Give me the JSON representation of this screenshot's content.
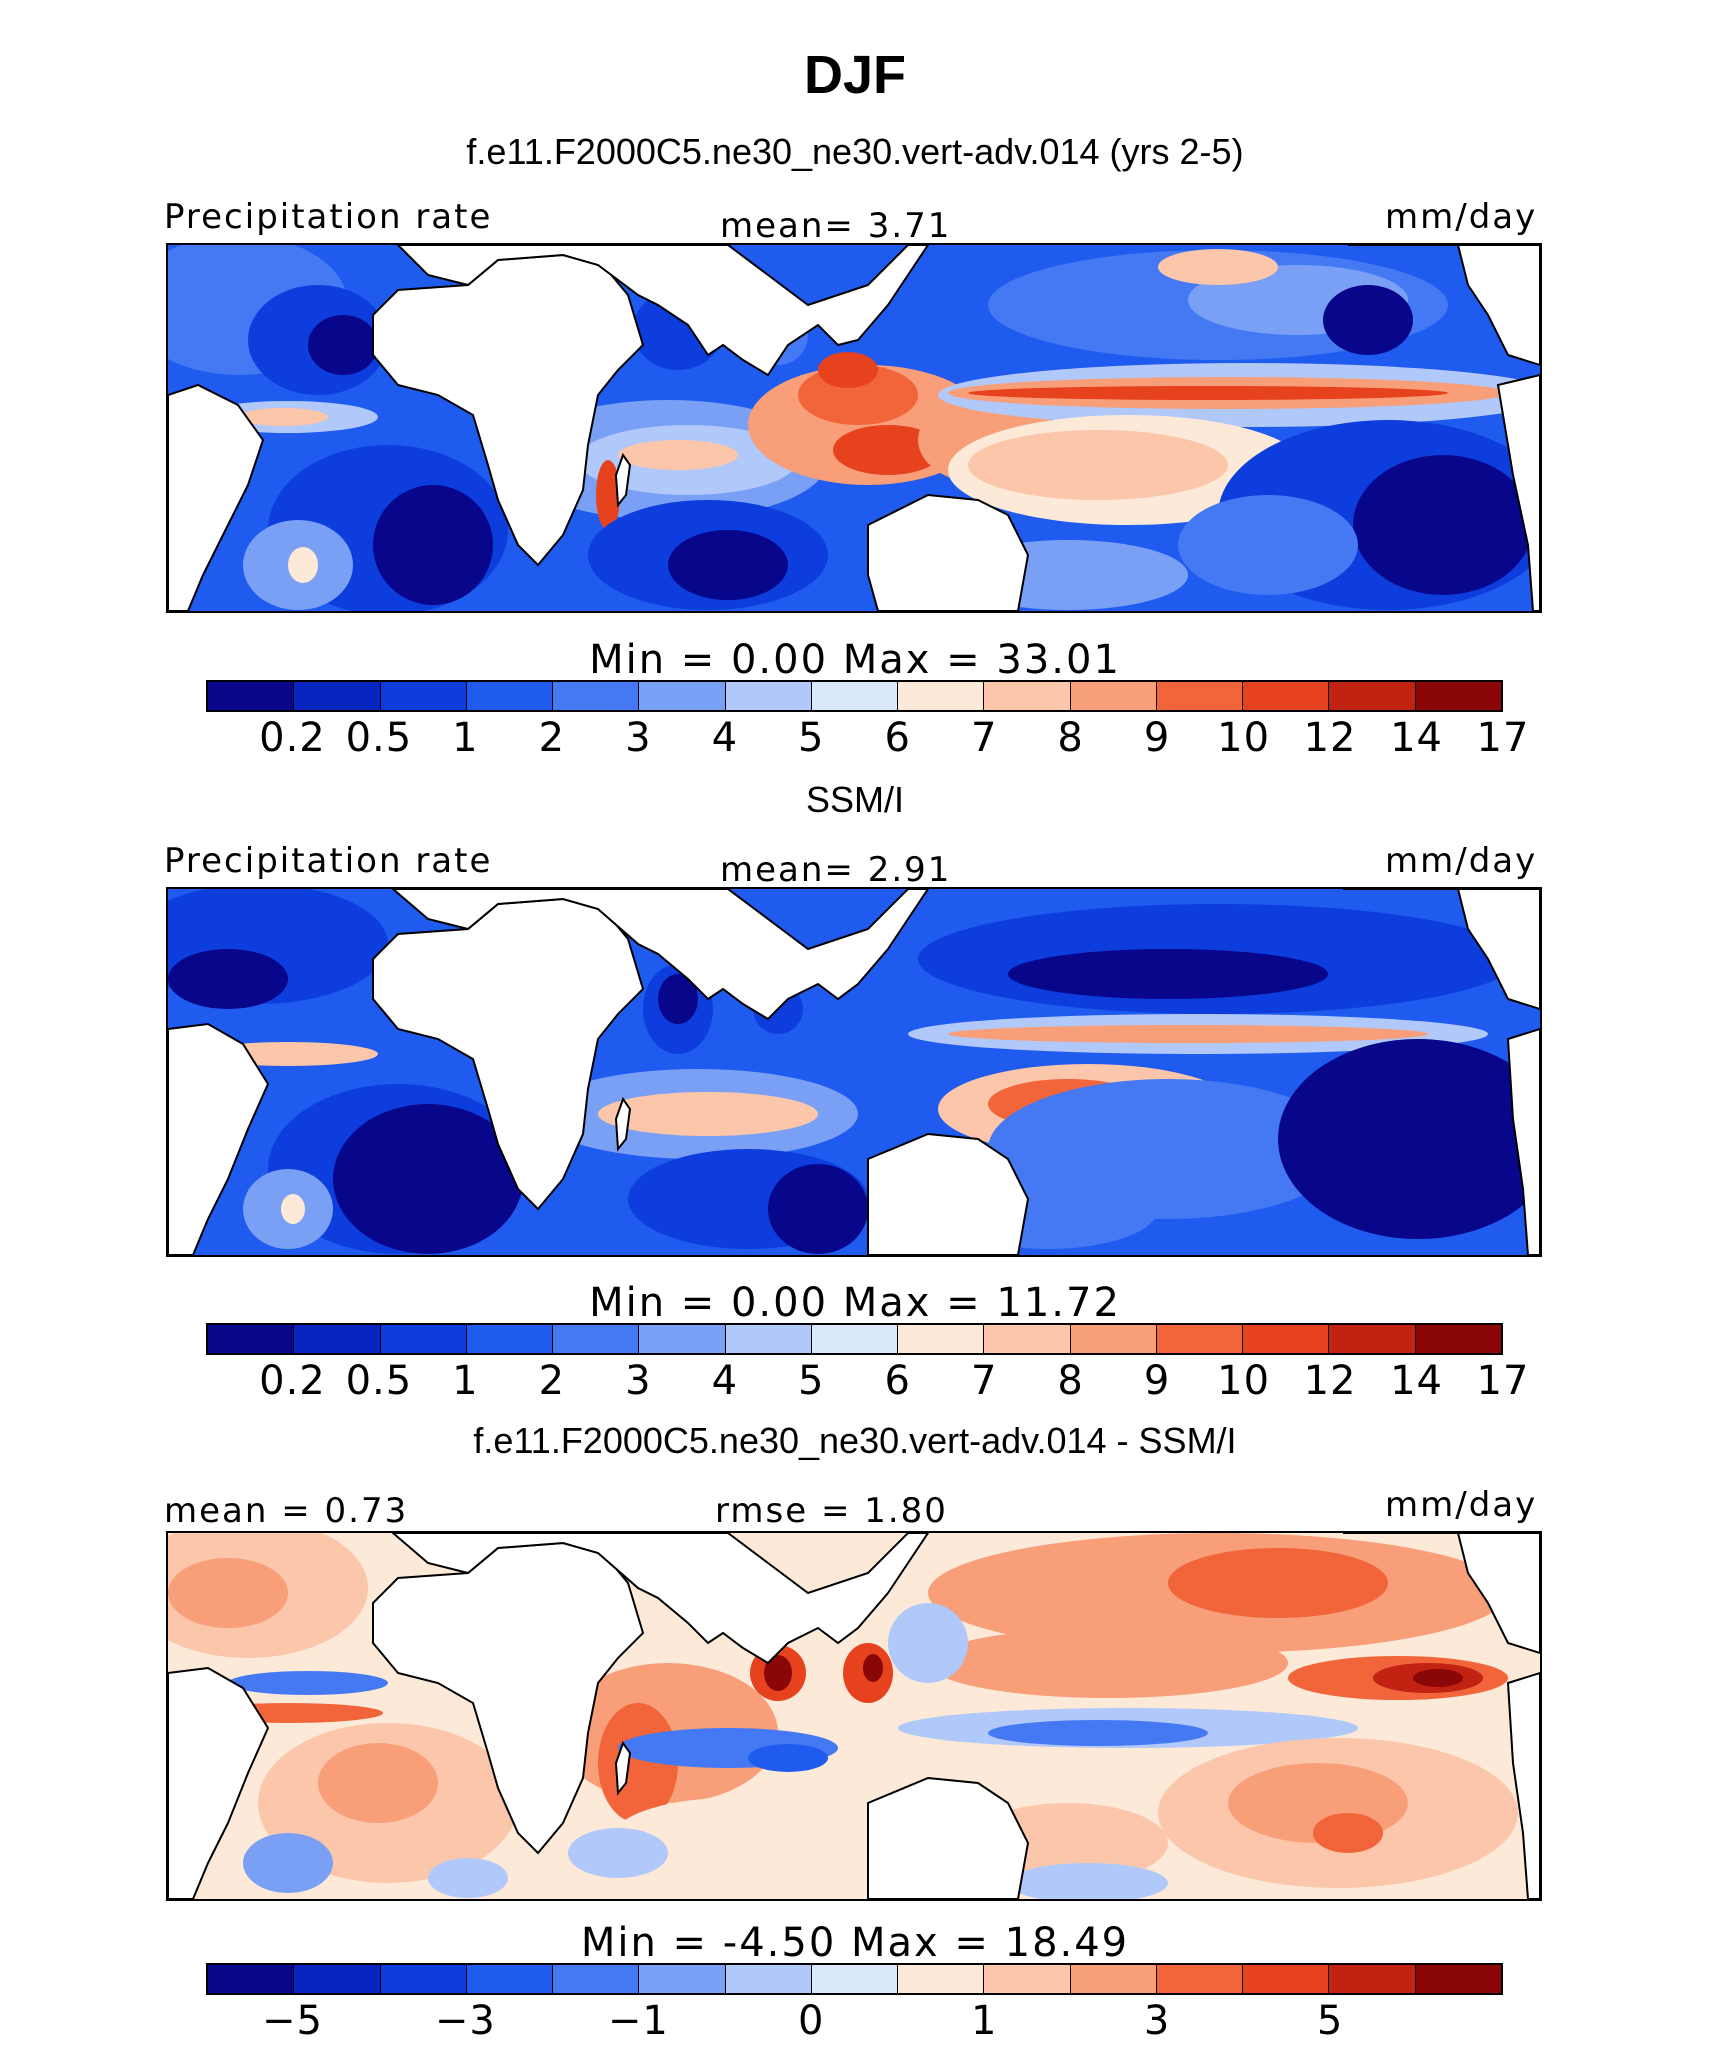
{
  "title": "DJF",
  "panels": [
    {
      "subtitle": "f.e11.F2000C5.ne30_ne30.vert-adv.014 (yrs 2-5)",
      "left_label": "Precipitation rate",
      "center_label": "mean=   3.71",
      "right_label": "mm/day",
      "minmax": "Min  =    0.00  Max  =   33.01",
      "colorbar_ticks": [
        "0.2",
        "0.5",
        "1",
        "2",
        "3",
        "4",
        "5",
        "6",
        "7",
        "8",
        "9",
        "10",
        "12",
        "14",
        "17"
      ]
    },
    {
      "subtitle": "SSM/I",
      "left_label": "Precipitation rate",
      "center_label": "mean=   2.91",
      "right_label": "mm/day",
      "minmax": "Min  =    0.00  Max  =   11.72",
      "colorbar_ticks": [
        "0.2",
        "0.5",
        "1",
        "2",
        "3",
        "4",
        "5",
        "6",
        "7",
        "8",
        "9",
        "10",
        "12",
        "14",
        "17"
      ]
    },
    {
      "subtitle": "f.e11.F2000C5.ne30_ne30.vert-adv.014 - SSM/I",
      "left_label": "mean =   0.73",
      "center_label": "rmse =   1.80",
      "right_label": "mm/day",
      "minmax": "Min  =  -4.50  Max  =   18.49",
      "colorbar_ticks": [
        "-5",
        "-3",
        "-1",
        "0",
        "1",
        "3",
        "5"
      ]
    }
  ],
  "colorbar_colors": [
    "#08068a",
    "#0a24c0",
    "#0d3ddd",
    "#1f5bef",
    "#4479f3",
    "#7aa0f6",
    "#b0c8fa",
    "#dbe8fc",
    "#fde9d8",
    "#fbc6aa",
    "#f89e78",
    "#f2643a",
    "#e5421d",
    "#c12212",
    "#8b0606"
  ]
}
